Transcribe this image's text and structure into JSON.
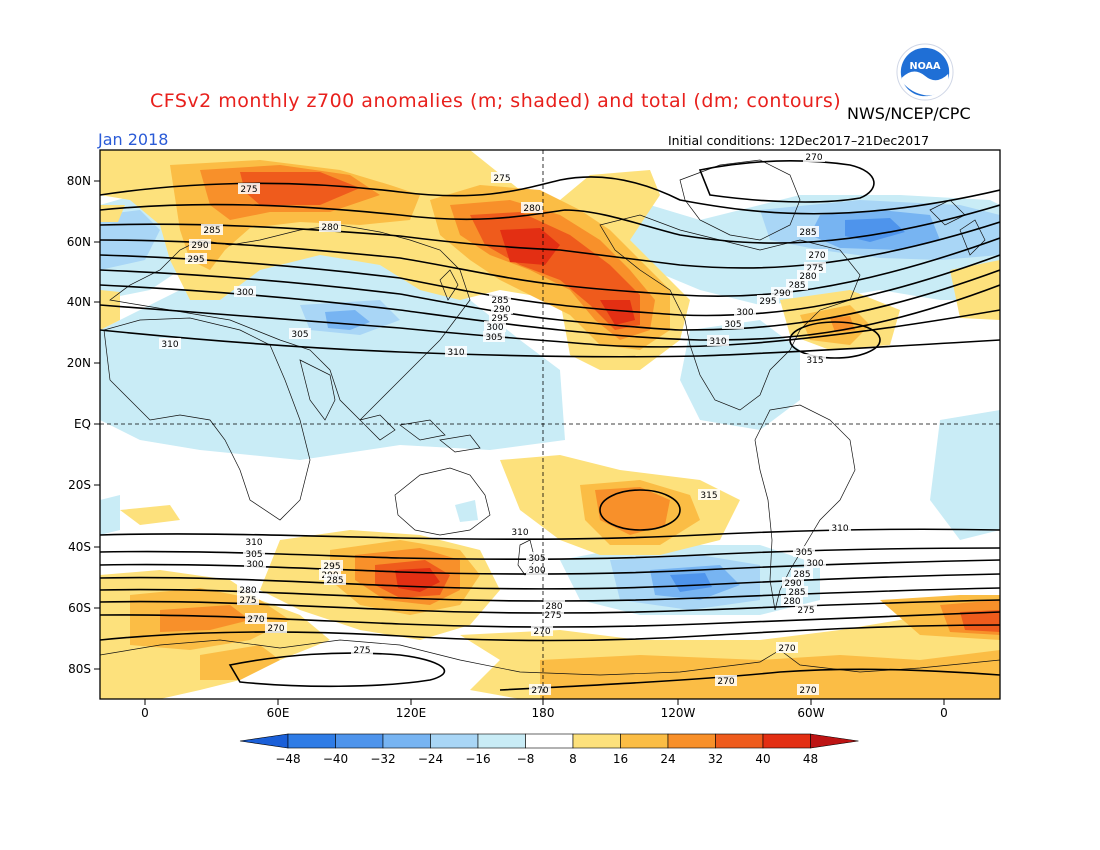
{
  "title": "CFSv2 monthly z700 anomalies (m; shaded) and total (dm; contours)",
  "agency": "NWS/NCEP/CPC",
  "logo_text": "NOAA",
  "month": "Jan 2018",
  "initial_conditions": "Initial conditions: 12Dec2017–21Dec2017",
  "lat_labels": [
    "80N",
    "60N",
    "40N",
    "20N",
    "EQ",
    "20S",
    "40S",
    "60S",
    "80S"
  ],
  "lon_labels": [
    "0",
    "60E",
    "120E",
    "180",
    "120W",
    "60W",
    "0"
  ],
  "colorbar": {
    "labels": [
      "−48",
      "−40",
      "−32",
      "−24",
      "−16",
      "−8",
      "8",
      "16",
      "24",
      "32",
      "40",
      "48"
    ],
    "colors": [
      "#1a5fd8",
      "#2f7ce6",
      "#4e94ec",
      "#77b4f2",
      "#a9d6f6",
      "#c9ecf6",
      "#ffffff",
      "#fde17c",
      "#fbbd45",
      "#f8902a",
      "#ef5b1c",
      "#e32f13",
      "#bd1414"
    ]
  },
  "contour_labels": [
    "270",
    "275",
    "280",
    "285",
    "290",
    "295",
    "300",
    "305",
    "310",
    "315"
  ],
  "colors": {
    "title": "#e8201c",
    "month": "#2a5bd7",
    "logo": "#1f6fd6"
  }
}
